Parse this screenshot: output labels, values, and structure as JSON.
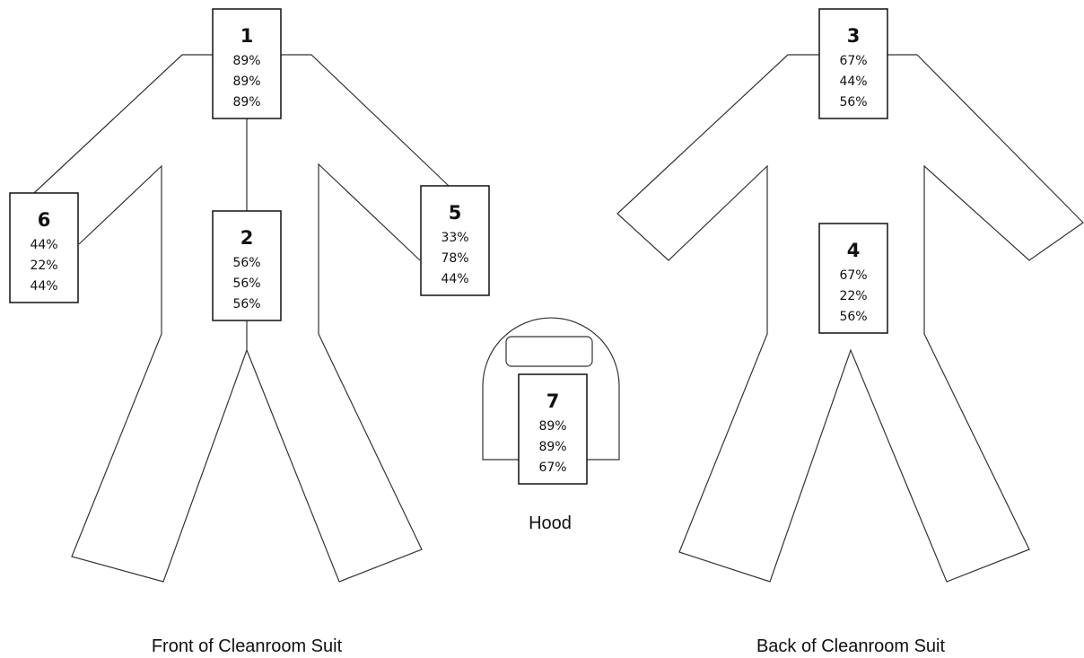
{
  "boxes": [
    {
      "label": "1",
      "values": [
        "89%",
        "89%",
        "89%"
      ]
    },
    {
      "label": "2",
      "values": [
        "56%",
        "56%",
        "56%"
      ]
    },
    {
      "label": "3",
      "values": [
        "67%",
        "44%",
        "56%"
      ]
    },
    {
      "label": "4",
      "values": [
        "67%",
        "22%",
        "56%"
      ]
    },
    {
      "label": "5",
      "values": [
        "33%",
        "78%",
        "44%"
      ]
    },
    {
      "label": "6",
      "values": [
        "44%",
        "22%",
        "44%"
      ]
    },
    {
      "label": "7",
      "values": [
        "89%",
        "89%",
        "67%"
      ]
    }
  ],
  "captions": {
    "front": "Front of Cleanroom Suit",
    "back": "Back of Cleanroom Suit",
    "hood": "Hood"
  }
}
